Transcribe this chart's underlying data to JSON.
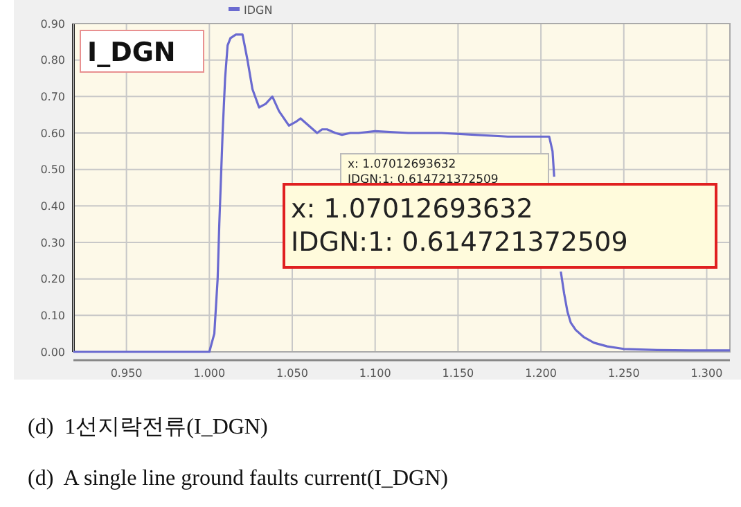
{
  "chart_data": {
    "type": "line",
    "legend": "top left",
    "grid": true,
    "marker": "none",
    "line_style": "solid",
    "xlim": [
      0.918,
      1.314
    ],
    "xticks": [
      {
        "value": 0.95,
        "label": "0.950"
      },
      {
        "value": 1.0,
        "label": "1.000"
      },
      {
        "value": 1.05,
        "label": "1.050"
      },
      {
        "value": 1.1,
        "label": "1.100"
      },
      {
        "value": 1.15,
        "label": "1.150"
      },
      {
        "value": 1.2,
        "label": "1.200"
      },
      {
        "value": 1.25,
        "label": "1.250"
      },
      {
        "value": 1.3,
        "label": "1.300"
      }
    ],
    "ylim": [
      0,
      0.9
    ],
    "yticks": [
      {
        "value": 0,
        "label": "0.00"
      },
      {
        "value": 0.1,
        "label": "0.10"
      },
      {
        "value": 0.2,
        "label": "0.20"
      },
      {
        "value": 0.3,
        "label": "0.30"
      },
      {
        "value": 0.4,
        "label": "0.40"
      },
      {
        "value": 0.5,
        "label": "0.50"
      },
      {
        "value": 0.6,
        "label": "0.60"
      },
      {
        "value": 0.7,
        "label": "0.70"
      },
      {
        "value": 0.8,
        "label": "0.80"
      },
      {
        "value": 0.9,
        "label": "0.90"
      }
    ],
    "series": [
      {
        "name": "IDGN",
        "color": "#6a6ad0",
        "x": [
          0.918,
          0.95,
          1.0,
          1.003,
          1.005,
          1.006,
          1.008,
          1.0095,
          1.011,
          1.0127,
          1.016,
          1.02,
          1.023,
          1.026,
          1.03,
          1.034,
          1.038,
          1.042,
          1.048,
          1.052,
          1.055,
          1.06,
          1.065,
          1.068,
          1.071,
          1.076,
          1.08,
          1.085,
          1.09,
          1.1,
          1.12,
          1.14,
          1.16,
          1.18,
          1.195,
          1.205,
          1.207,
          1.208,
          1.21,
          1.212,
          1.214,
          1.216,
          1.218,
          1.221,
          1.226,
          1.232,
          1.24,
          1.25,
          1.27,
          1.29,
          1.314
        ],
        "values": [
          0,
          0,
          0,
          0.05,
          0.2,
          0.35,
          0.6,
          0.75,
          0.84,
          0.86,
          0.87,
          0.87,
          0.8,
          0.72,
          0.67,
          0.68,
          0.7,
          0.66,
          0.62,
          0.63,
          0.64,
          0.62,
          0.6,
          0.61,
          0.61,
          0.6,
          0.595,
          0.6,
          0.6,
          0.605,
          0.6,
          0.6,
          0.595,
          0.59,
          0.59,
          0.59,
          0.55,
          0.48,
          null,
          0.22,
          0.16,
          0.11,
          0.08,
          0.06,
          0.04,
          0.025,
          0.015,
          0.008,
          0.005,
          0.004,
          0.004
        ]
      }
    ],
    "annotations": [
      "I_DGN",
      "x: 1.07012693632\nIDGN:1: 0.614721372509",
      "x: 1.07012693632\nIDGN:1: 0.614721372509",
      "(d)  1선지락전류(I_DGN)",
      "(d)  A single line ground faults current(I_DGN)"
    ]
  }
}
